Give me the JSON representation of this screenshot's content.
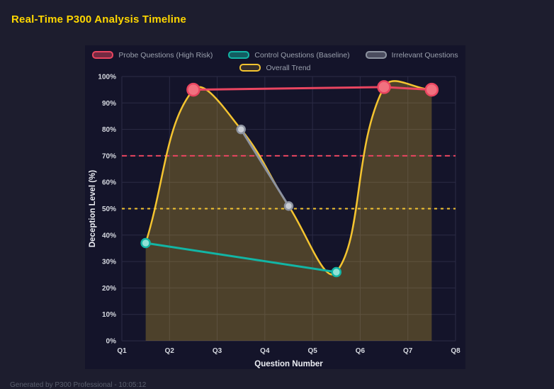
{
  "page": {
    "title": "Real-Time P300 Analysis Timeline",
    "footer": "Generated by P300 Professional - 10:05:12"
  },
  "theme": {
    "page_bg": "#1d1d2e",
    "panel_bg": "#14142a",
    "title_color": "#ffd700",
    "grid_color": "#2b2b45",
    "tick_color": "#d6d9e0",
    "axis_label_color": "#eceef4",
    "legend_text_color": "#9aa0ad",
    "footer_color": "#5a5f6e"
  },
  "chart_data": {
    "type": "line",
    "title": "",
    "xlabel": "Question Number",
    "ylabel": "Deception Level (%)",
    "xlim": [
      1,
      8
    ],
    "ylim": [
      0,
      100
    ],
    "grid": true,
    "legend_position": "top",
    "x_tick_values": [
      1,
      2,
      3,
      4,
      5,
      6,
      7,
      8
    ],
    "x_tick_labels": [
      "Q1",
      "Q2",
      "Q3",
      "Q4",
      "Q5",
      "Q6",
      "Q7",
      "Q8"
    ],
    "y_tick_values": [
      0,
      10,
      20,
      30,
      40,
      50,
      60,
      70,
      80,
      90,
      100
    ],
    "y_tick_labels": [
      "0%",
      "10%",
      "20%",
      "30%",
      "40%",
      "50%",
      "60%",
      "70%",
      "80%",
      "90%",
      "100%"
    ],
    "series": [
      {
        "name": "Probe Questions (High Risk)",
        "type": "line",
        "color": "#e94560",
        "point_fill": "#f2717f",
        "x": [
          2.5,
          6.5,
          7.5
        ],
        "values": [
          95,
          96,
          95
        ],
        "line_width": 3,
        "marker_radius": 8.5
      },
      {
        "name": "Control Questions (Baseline)",
        "type": "line",
        "color": "#12b5a5",
        "point_fill": "#8fe2d6",
        "x": [
          1.5,
          5.5
        ],
        "values": [
          37,
          26
        ],
        "line_width": 3,
        "marker_radius": 6
      },
      {
        "name": "Irrelevant Questions",
        "type": "line",
        "color": "#8d93a0",
        "point_fill": "#c9cdd4",
        "x": [
          3.5,
          4.5
        ],
        "values": [
          80,
          51
        ],
        "line_width": 3,
        "marker_radius": 5.5
      },
      {
        "name": "Overall Trend",
        "type": "spline",
        "color": "#f4c430",
        "fill_color": "#f4c430",
        "fill_opacity": 0.26,
        "x": [
          1.5,
          2.5,
          3.5,
          4.5,
          5.5,
          6.5,
          7.5
        ],
        "values": [
          37,
          95,
          80,
          51,
          26,
          96,
          95
        ],
        "line_width": 2.5,
        "marker_radius": 0
      }
    ],
    "reference_lines": [
      {
        "value": 70,
        "color": "#e94560",
        "dash": "7 5"
      },
      {
        "value": 50,
        "color": "#f4c430",
        "dash": "4 5"
      }
    ]
  }
}
